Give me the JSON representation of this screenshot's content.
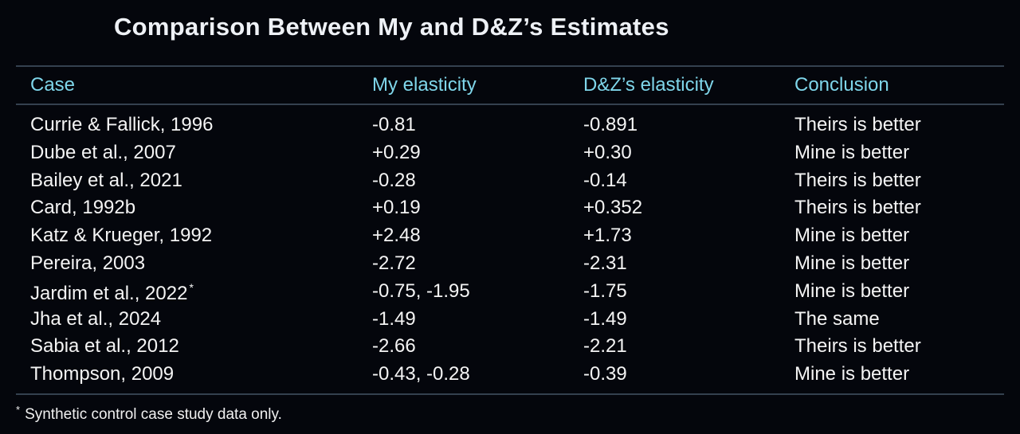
{
  "title": "Comparison Between My and D&Z’s Estimates",
  "table": {
    "header": [
      "Case",
      "My elasticity",
      "D&Z’s elasticity",
      "Conclusion"
    ],
    "rows": [
      [
        "Currie & Fallick, 1996",
        "-0.81",
        "-0.891",
        "Theirs is better"
      ],
      [
        "Dube et al., 2007",
        "+0.29",
        "+0.30",
        "Mine is better"
      ],
      [
        "Bailey et al., 2021",
        "-0.28",
        "-0.14",
        "Theirs is better"
      ],
      [
        "Card, 1992b",
        "+0.19",
        "+0.352",
        "Theirs is better"
      ],
      [
        "Katz & Krueger, 1992",
        "+2.48",
        "+1.73",
        "Mine is better"
      ],
      [
        "Pereira, 2003",
        "-2.72",
        "-2.31",
        "Mine is better"
      ],
      [
        "Jardim et al., 2022",
        "-0.75, -1.95",
        "-1.75",
        "Mine is better"
      ],
      [
        "Jha et al., 2024",
        "-1.49",
        "-1.49",
        "The same"
      ],
      [
        "Sabia et al., 2012",
        "-2.66",
        "-2.21",
        "Theirs is better"
      ],
      [
        "Thompson, 2009",
        "-0.43, -0.28",
        "-0.39",
        "Mine is better"
      ]
    ],
    "footnoted_row": 6
  },
  "footnote": {
    "marker": "*",
    "text": "Synthetic control case study data only."
  }
}
